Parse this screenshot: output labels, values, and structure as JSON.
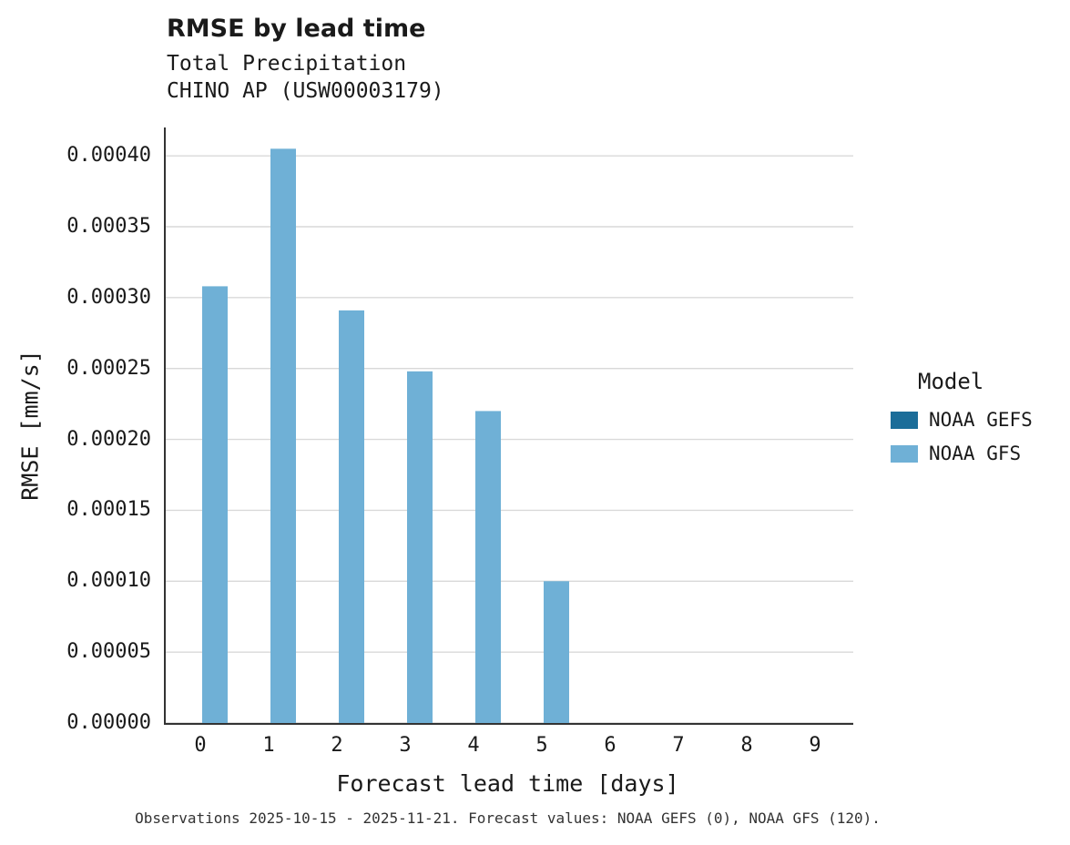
{
  "chart_data": {
    "type": "bar",
    "title": "RMSE by lead time",
    "subtitle": [
      "Total Precipitation",
      "CHINO AP (USW00003179)"
    ],
    "xlabel": "Forecast lead time [days]",
    "ylabel": "RMSE [mm/s]",
    "categories": [
      "0",
      "1",
      "2",
      "3",
      "4",
      "5",
      "6",
      "7",
      "8",
      "9"
    ],
    "series": [
      {
        "name": "NOAA GEFS",
        "color": "#1b6d99",
        "values": [
          null,
          null,
          null,
          null,
          null,
          null,
          null,
          null,
          null,
          null
        ]
      },
      {
        "name": "NOAA GFS",
        "color": "#6fb0d6",
        "values": [
          0.000308,
          0.000405,
          0.000291,
          0.000248,
          0.00022,
          0.0001,
          null,
          null,
          null,
          null
        ]
      }
    ],
    "ylim": [
      0,
      0.00042
    ],
    "yticks": [
      0.0,
      5e-05,
      0.0001,
      0.00015,
      0.0002,
      0.00025,
      0.0003,
      0.00035,
      0.0004
    ],
    "ytick_labels": [
      "0.00000",
      "0.00005",
      "0.00010",
      "0.00015",
      "0.00020",
      "0.00025",
      "0.00030",
      "0.00035",
      "0.00040"
    ],
    "grid": "horizontal",
    "legend": {
      "title": "Model",
      "position": "right"
    },
    "caption": "Observations 2025-10-15 - 2025-11-21. Forecast values: NOAA GEFS (0), NOAA GFS (120).",
    "colors": {
      "grid": "#d9d9d9",
      "axis": "#333333",
      "text": "#1a1a1a",
      "caption": "#333333"
    }
  }
}
